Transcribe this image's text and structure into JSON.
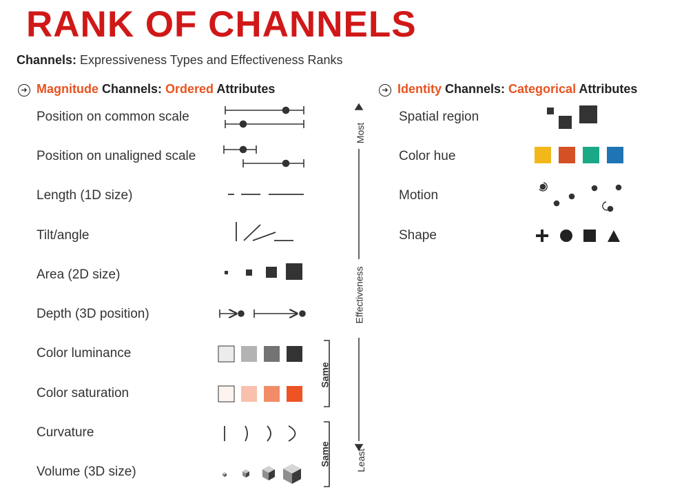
{
  "title": "RANK OF CHANNELS",
  "colors": {
    "title": "#d01818",
    "accent": "#e8531f",
    "dark": "#333333"
  },
  "subtitle": {
    "bold": "Channels:",
    "rest": " Expressiveness Types and Effectiveness Ranks"
  },
  "magnitude": {
    "head": {
      "w1": "Magnitude",
      "w2": " Channels: ",
      "w3": "Ordered",
      "w4": " Attributes"
    },
    "items": [
      "Position on common scale",
      "Position on unaligned scale",
      "Length (1D size)",
      "Tilt/angle",
      "Area (2D size)",
      "Depth (3D position)",
      "Color luminance",
      "Color saturation",
      "Curvature",
      "Volume (3D size)"
    ]
  },
  "identity": {
    "head": {
      "w1": "Identity",
      "w2": " Channels: ",
      "w3": "Categorical",
      "w4": " Attributes"
    },
    "items": [
      "Spatial region",
      "Color hue",
      "Motion",
      "Shape"
    ]
  },
  "effectiveness": {
    "top": "Most",
    "middle": "Effectiveness",
    "bottom": "Least"
  },
  "brackets": {
    "first": "Same",
    "second": "Same"
  },
  "swatches": {
    "luminance": [
      "#ececec",
      "#b3b3b3",
      "#737373",
      "#333333"
    ],
    "saturation": [
      "#fdf3ef",
      "#f9c1ad",
      "#f28c68",
      "#ee5324"
    ],
    "hue": [
      "#f2b81a",
      "#d35124",
      "#1aa987",
      "#1f74b5"
    ]
  }
}
